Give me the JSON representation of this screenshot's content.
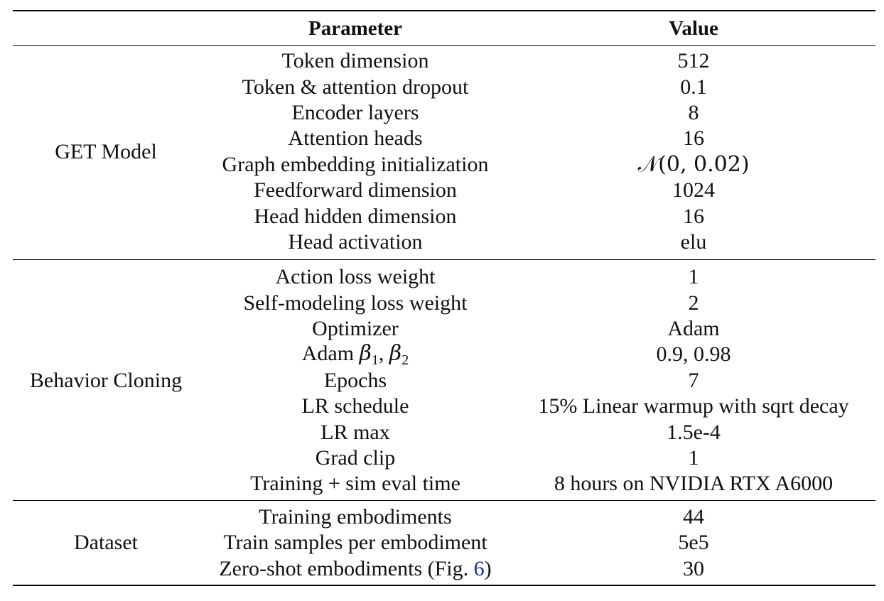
{
  "header": {
    "label_col": "",
    "parameter": "Parameter",
    "value": "Value"
  },
  "groups": [
    {
      "label": "GET Model",
      "rows": [
        {
          "parameter": "Token dimension",
          "value": "512"
        },
        {
          "parameter": "Token & attention dropout",
          "value": "0.1"
        },
        {
          "parameter": "Encoder layers",
          "value": "8"
        },
        {
          "parameter": "Attention heads",
          "value": "16"
        },
        {
          "parameter": "Graph embedding initialization",
          "value": "𝒩(0, 0.02)"
        },
        {
          "parameter": "Feedforward dimension",
          "value": "1024"
        },
        {
          "parameter": "Head hidden dimension",
          "value": "16"
        },
        {
          "parameter": "Head activation",
          "value": "elu"
        }
      ]
    },
    {
      "label": "Behavior Cloning",
      "rows": [
        {
          "parameter": "Action loss weight",
          "value": "1"
        },
        {
          "parameter": "Self-modeling loss weight",
          "value": "2"
        },
        {
          "parameter": "Optimizer",
          "value": "Adam"
        },
        {
          "parameter_prefix": "Adam ",
          "beta1": "β",
          "beta1_sub": "1",
          "sep": ", ",
          "beta2": "β",
          "beta2_sub": "2",
          "value": "0.9, 0.98"
        },
        {
          "parameter": "Epochs",
          "value": "7"
        },
        {
          "parameter": "LR schedule",
          "value": "15% Linear warmup with sqrt decay"
        },
        {
          "parameter": "LR max",
          "value": "1.5e-4"
        },
        {
          "parameter": "Grad clip",
          "value": "1"
        },
        {
          "parameter": "Training + sim eval time",
          "value": "8 hours on NVIDIA RTX A6000"
        }
      ]
    },
    {
      "label": "Dataset",
      "rows": [
        {
          "parameter": "Training embodiments",
          "value": "44"
        },
        {
          "parameter": "Train samples per embodiment",
          "value": "5e5"
        },
        {
          "parameter_prefix": "Zero-shot embodiments (Fig. ",
          "ref": "6",
          "parameter_suffix": ")",
          "value": "30"
        }
      ]
    }
  ]
}
